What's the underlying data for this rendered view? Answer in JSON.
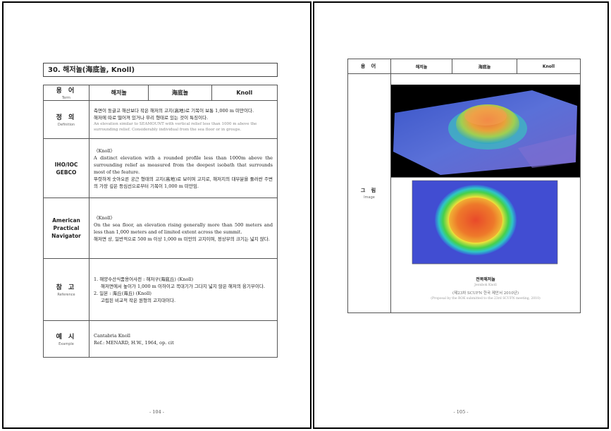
{
  "left": {
    "title": "30. 해저놀(海底놀, Knoll)",
    "header": {
      "label_ko": "용 어",
      "label_en": "Term",
      "col1": "해저놀",
      "col2": "海底놀",
      "col3": "Knoll"
    },
    "definition": {
      "label_ko": "정 의",
      "label_en": "Definition",
      "lines": [
        "측면이 둥글고 해산보다 작은 해저의 고지(高地)로 기복이 보통 1,000 m 미만이다.",
        "해저에 따로 떨어져 있거나 무리 형태로 있는 것이 특징이다."
      ],
      "gray_lines": [
        "An elevation similar to SEAMOUNT with vertical relief less than 1000 m above the",
        "surrounding relief. Considerably individual from the sea floor or in groups."
      ]
    },
    "iho": {
      "label": "IHO/IOC GEBCO",
      "lines": [
        "〈Knoll〉",
        "A distinct elevation with a rounded profile less than 1000m above the surrounding relief as measured from the deepest isobath that surrounds most of the feature.",
        "뚜렷하게 솟아오른 궁근 형태의 고지(高地)로 보이며 고지로, 해저지의 대부분을 둘러싼 주변의 가장 깊은 등심선으로부터 기복이 1,000 m 미만임."
      ]
    },
    "american": {
      "label_lines": [
        "American",
        "Practical",
        "Navigator"
      ],
      "lines": [
        "〈Knoll〉",
        "On the sea floor, an elevation rising generally more than 500 meters and less than 1,000 meters and of limited extent across the summit.",
        "해저면 상, 일반적으로 500 m 이상 1,000 m 미만의 고지이며, 정상부의 크기는 넓지 않다."
      ]
    },
    "reference": {
      "label_ko": "참 고",
      "label_en": "Reference",
      "lines": [
        "1. 해양수산식품용어사전 : 해저구(海底丘) (Knoll)",
        "해저면에서 높이가 1,000 m 이하이고 꼭대기가 그다지 넓지 않은 해저의 융기부이다.",
        "2. 일본 : 海丘(海丘) (Knoll)",
        "고립된 비교적 작은 원형의 고지대이다."
      ]
    },
    "example": {
      "label_ko": "예 시",
      "label_en": "Example",
      "lines": [
        "Cantabria Knoll",
        "Ref.: MENARD, H.W., 1964, op. cit"
      ]
    },
    "page_num": "- 104 -"
  },
  "right": {
    "header": {
      "label_ko": "용 어",
      "col1": "해저놀",
      "col2": "海底놀",
      "col3": "Knoll"
    },
    "image": {
      "label_ko": "그 림",
      "label_en": "Image",
      "caption_ko": "전복해저놀",
      "caption_en": "Jeonbok Knoll",
      "caption_proposal_ko": "(제23차 SCUFN 한국 제안서 2010년)",
      "caption_proposal_en": "(Proposal by the ROK submitted to the 23rd SCUFN meeting, 2010)"
    },
    "page_num": "- 105 -"
  },
  "colors": {
    "border": "#000000",
    "table_line": "#555555"
  }
}
